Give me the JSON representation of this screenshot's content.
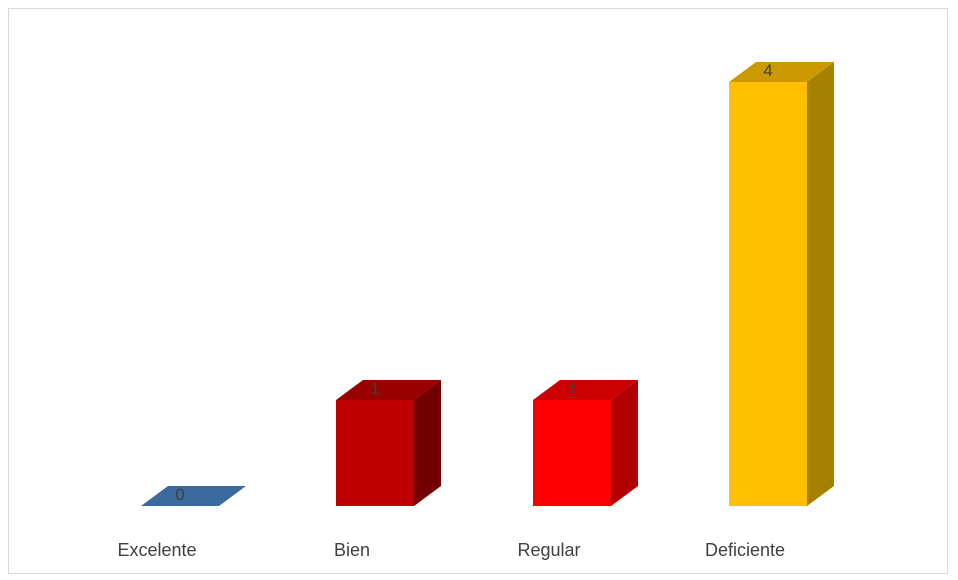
{
  "chart_data": {
    "type": "bar",
    "categories": [
      "Excelente",
      "Bien",
      "Regular",
      "Deficiente"
    ],
    "values": [
      0,
      1,
      1,
      4
    ],
    "ylim": [
      0,
      4
    ],
    "grid": false,
    "legend": false,
    "bar_style": "3d",
    "colors": {
      "front": [
        "#3a6a9e",
        "#c00000",
        "#ff0000",
        "#ffc000"
      ],
      "top": [
        "#3a6a9e",
        "#990000",
        "#cc0000",
        "#cc9900"
      ],
      "side": [
        "#2b5080",
        "#730000",
        "#b00000",
        "#a68000"
      ]
    }
  }
}
